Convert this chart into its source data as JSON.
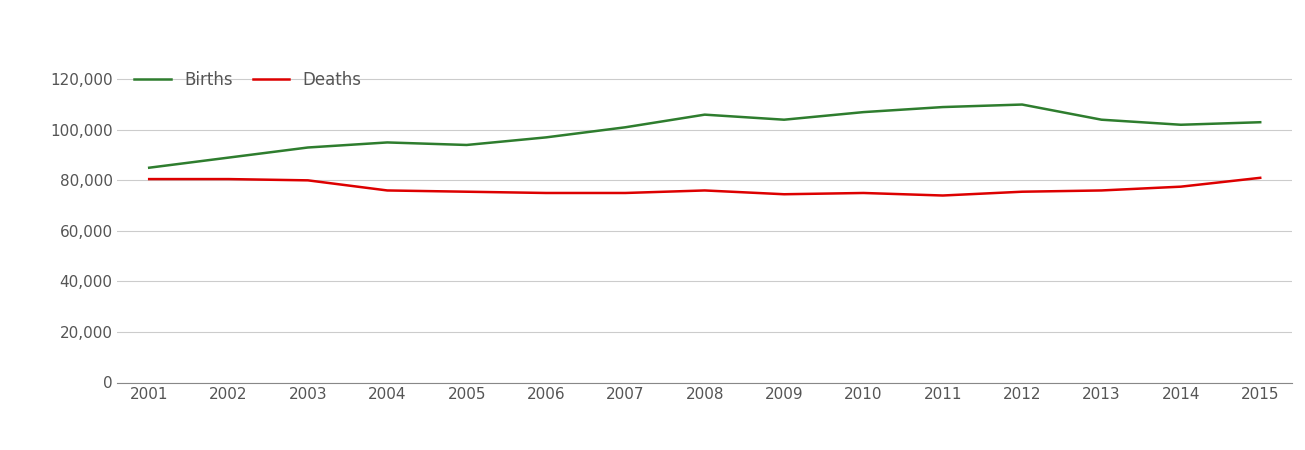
{
  "years": [
    2001,
    2002,
    2003,
    2004,
    2005,
    2006,
    2007,
    2008,
    2009,
    2010,
    2011,
    2012,
    2013,
    2014,
    2015
  ],
  "births": [
    85000,
    89000,
    93000,
    95000,
    94000,
    97000,
    101000,
    106000,
    104000,
    107000,
    109000,
    110000,
    104000,
    102000,
    103000
  ],
  "deaths": [
    80500,
    80500,
    80000,
    76000,
    75500,
    75000,
    75000,
    76000,
    74500,
    75000,
    74000,
    75500,
    76000,
    77500,
    81000
  ],
  "births_color": "#2e7d2e",
  "deaths_color": "#dd0000",
  "background_color": "#ffffff",
  "grid_color": "#cccccc",
  "legend_labels": [
    "Births",
    "Deaths"
  ],
  "ylim": [
    0,
    130000
  ],
  "yticks": [
    0,
    20000,
    40000,
    60000,
    80000,
    100000,
    120000
  ],
  "line_width": 1.8,
  "figsize": [
    13.05,
    4.5
  ],
  "dpi": 100,
  "tick_label_color": "#555555",
  "tick_fontsize": 11,
  "legend_fontsize": 12
}
